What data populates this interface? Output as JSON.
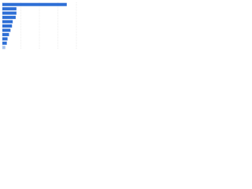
{
  "chart_data": {
    "type": "hbar",
    "categories": [
      null,
      null,
      null,
      null,
      null,
      null,
      null,
      null,
      null,
      null,
      null
    ],
    "values": [
      87,
      19,
      19,
      18,
      14,
      13,
      11,
      9,
      7,
      6,
      4
    ],
    "colors": [
      "#2e6fd6",
      "#2e6fd6",
      "#2e6fd6",
      "#2e6fd6",
      "#2e6fd6",
      "#2e6fd6",
      "#2e6fd6",
      "#2e6fd6",
      "#2e6fd6",
      "#2e6fd6",
      "#a9c4ec"
    ],
    "xlim": [
      0,
      100
    ],
    "xticks": [
      0,
      25,
      50,
      75,
      100
    ],
    "grid": true
  }
}
